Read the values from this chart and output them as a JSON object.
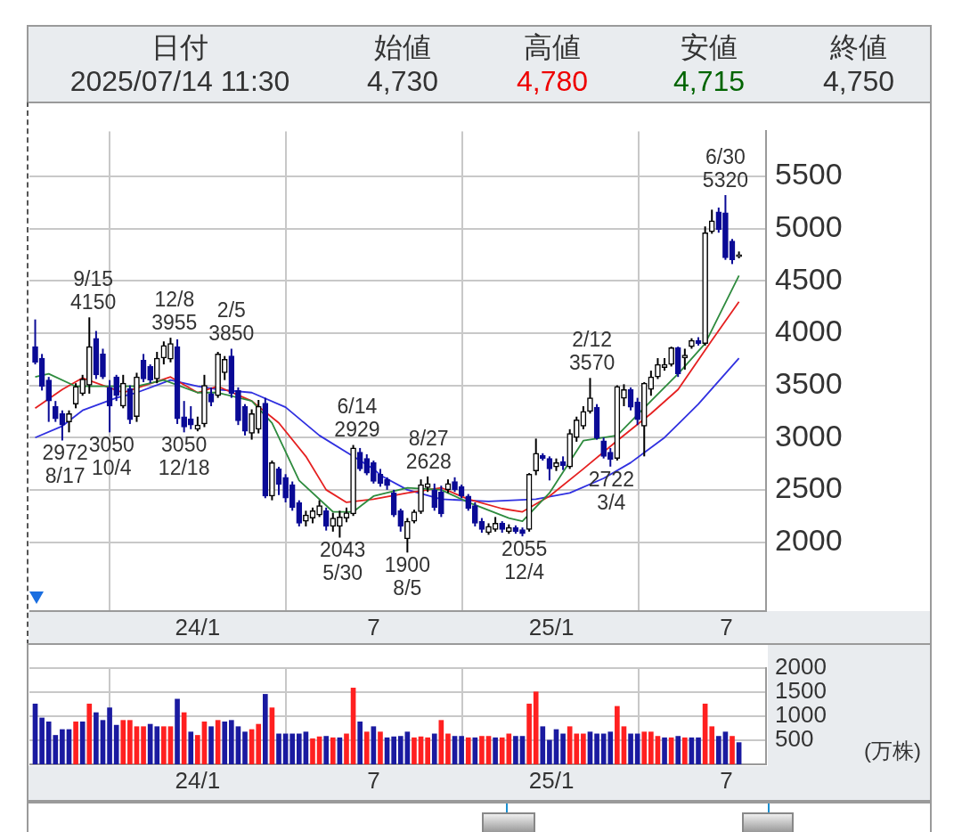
{
  "chart_data": [
    {
      "type": "other",
      "annotations": [
        "日付",
        "2025/07/14 11:30",
        "始値",
        "4,730",
        "高値",
        "4,780",
        "安値",
        "4,715",
        "終値",
        "4,750"
      ],
      "colors": [
        null,
        null,
        null,
        null,
        null,
        "#ee0000",
        null,
        "#006400",
        null,
        null
      ]
    },
    {
      "type": "candlestick",
      "x": [
        "2023-07-17",
        "2023-07-24",
        "2023-07-31",
        "2023-08-07",
        "2023-08-14",
        "2023-08-21",
        "2023-08-28",
        "2023-09-04",
        "2023-09-11",
        "2023-09-18",
        "2023-09-25",
        "2023-10-02",
        "2023-10-09",
        "2023-10-16",
        "2023-10-23",
        "2023-10-30",
        "2023-11-06",
        "2023-11-13",
        "2023-11-20",
        "2023-11-27",
        "2023-12-04",
        "2023-12-11",
        "2023-12-18",
        "2023-12-25",
        "2024-01-01",
        "2024-01-08",
        "2024-01-15",
        "2024-01-22",
        "2024-01-29",
        "2024-02-05",
        "2024-02-12",
        "2024-02-19",
        "2024-02-26",
        "2024-03-04",
        "2024-03-11",
        "2024-03-18",
        "2024-03-25",
        "2024-04-01",
        "2024-04-08",
        "2024-04-15",
        "2024-04-22",
        "2024-04-29",
        "2024-05-06",
        "2024-05-13",
        "2024-05-20",
        "2024-05-27",
        "2024-06-03",
        "2024-06-10",
        "2024-06-17",
        "2024-06-24",
        "2024-07-01",
        "2024-07-08",
        "2024-07-15",
        "2024-07-22",
        "2024-07-29",
        "2024-08-05",
        "2024-08-12",
        "2024-08-19",
        "2024-08-26",
        "2024-09-02",
        "2024-09-09",
        "2024-09-16",
        "2024-09-23",
        "2024-09-30",
        "2024-10-07",
        "2024-10-14",
        "2024-10-21",
        "2024-10-28",
        "2024-11-04",
        "2024-11-11",
        "2024-11-18",
        "2024-11-25",
        "2024-12-02",
        "2024-12-09",
        "2024-12-16",
        "2024-12-23",
        "2024-12-30",
        "2025-01-06",
        "2025-01-13",
        "2025-01-20",
        "2025-01-27",
        "2025-02-03",
        "2025-02-10",
        "2025-02-17",
        "2025-02-24",
        "2025-03-03",
        "2025-03-10",
        "2025-03-17",
        "2025-03-24",
        "2025-03-31",
        "2025-04-07",
        "2025-04-14",
        "2025-04-21",
        "2025-04-28",
        "2025-05-05",
        "2025-05-12",
        "2025-05-19",
        "2025-05-26",
        "2025-06-02",
        "2025-06-09",
        "2025-06-16",
        "2025-06-23",
        "2025-06-30",
        "2025-07-07",
        "2025-07-14"
      ],
      "ohlc": [
        [
          3870,
          4130,
          3700,
          3720
        ],
        [
          3760,
          3800,
          3450,
          3490
        ],
        [
          3550,
          3580,
          3150,
          3350
        ],
        [
          3300,
          3350,
          3150,
          3180
        ],
        [
          3230,
          3260,
          2972,
          3120
        ],
        [
          3150,
          3260,
          3050,
          3230
        ],
        [
          3320,
          3520,
          3280,
          3490
        ],
        [
          3420,
          3600,
          3400,
          3560
        ],
        [
          3500,
          4150,
          3420,
          3870
        ],
        [
          3950,
          4020,
          3560,
          3600
        ],
        [
          3800,
          3850,
          3560,
          3580
        ],
        [
          3480,
          3550,
          3050,
          3300
        ],
        [
          3580,
          3600,
          3350,
          3400
        ],
        [
          3300,
          3600,
          3280,
          3520
        ],
        [
          3470,
          3500,
          3130,
          3170
        ],
        [
          3200,
          3620,
          3150,
          3580
        ],
        [
          3740,
          3800,
          3530,
          3560
        ],
        [
          3680,
          3700,
          3520,
          3550
        ],
        [
          3560,
          3820,
          3520,
          3760
        ],
        [
          3760,
          3920,
          3700,
          3880
        ],
        [
          3750,
          3955,
          3720,
          3900
        ],
        [
          3870,
          3940,
          3130,
          3180
        ],
        [
          3200,
          3350,
          3050,
          3100
        ],
        [
          3180,
          3300,
          3080,
          3120
        ],
        [
          3080,
          3200,
          3060,
          3120
        ],
        [
          3130,
          3600,
          3100,
          3500
        ],
        [
          3420,
          3480,
          3300,
          3340
        ],
        [
          3400,
          3820,
          3380,
          3800
        ],
        [
          3620,
          3780,
          3550,
          3750
        ],
        [
          3780,
          3850,
          3380,
          3420
        ],
        [
          3450,
          3480,
          3120,
          3160
        ],
        [
          3300,
          3320,
          3020,
          3060
        ],
        [
          3040,
          3270,
          2980,
          3230
        ],
        [
          3080,
          3360,
          3040,
          3300
        ],
        [
          3330,
          3380,
          2420,
          2440
        ],
        [
          2440,
          2780,
          2400,
          2760
        ],
        [
          2700,
          2720,
          2450,
          2550
        ],
        [
          2620,
          2650,
          2380,
          2420
        ],
        [
          2550,
          2580,
          2300,
          2330
        ],
        [
          2380,
          2400,
          2150,
          2180
        ],
        [
          2200,
          2300,
          2150,
          2260
        ],
        [
          2230,
          2330,
          2180,
          2300
        ],
        [
          2260,
          2400,
          2240,
          2350
        ],
        [
          2300,
          2330,
          2110,
          2150
        ],
        [
          2150,
          2280,
          2100,
          2230
        ],
        [
          2150,
          2300,
          2043,
          2240
        ],
        [
          2230,
          2330,
          2190,
          2280
        ],
        [
          2270,
          2929,
          2250,
          2900
        ],
        [
          2860,
          2900,
          2680,
          2700
        ],
        [
          2800,
          2840,
          2640,
          2660
        ],
        [
          2760,
          2780,
          2560,
          2580
        ],
        [
          2650,
          2700,
          2530,
          2560
        ],
        [
          2600,
          2620,
          2500,
          2540
        ],
        [
          2470,
          2500,
          2240,
          2260
        ],
        [
          2300,
          2320,
          2100,
          2150
        ],
        [
          2030,
          2230,
          1900,
          2200
        ],
        [
          2200,
          2310,
          2180,
          2290
        ],
        [
          2290,
          2600,
          2270,
          2550
        ],
        [
          2520,
          2628,
          2480,
          2560
        ],
        [
          2500,
          2560,
          2300,
          2330
        ],
        [
          2480,
          2540,
          2240,
          2270
        ],
        [
          2500,
          2600,
          2470,
          2560
        ],
        [
          2580,
          2620,
          2480,
          2500
        ],
        [
          2530,
          2550,
          2420,
          2440
        ],
        [
          2440,
          2460,
          2300,
          2320
        ],
        [
          2350,
          2380,
          2150,
          2180
        ],
        [
          2200,
          2230,
          2090,
          2120
        ],
        [
          2090,
          2180,
          2070,
          2150
        ],
        [
          2120,
          2240,
          2100,
          2180
        ],
        [
          2180,
          2200,
          2090,
          2120
        ],
        [
          2100,
          2170,
          2080,
          2140
        ],
        [
          2140,
          2160,
          2080,
          2100
        ],
        [
          2120,
          2140,
          2055,
          2080
        ],
        [
          2120,
          2660,
          2100,
          2650
        ],
        [
          2680,
          2990,
          2640,
          2850
        ],
        [
          2830,
          2850,
          2780,
          2800
        ],
        [
          2800,
          2820,
          2590,
          2700
        ],
        [
          2720,
          2800,
          2680,
          2760
        ],
        [
          2770,
          2820,
          2690,
          2730
        ],
        [
          2720,
          3080,
          2700,
          3040
        ],
        [
          3000,
          3200,
          2960,
          3170
        ],
        [
          3110,
          3300,
          3080,
          3250
        ],
        [
          3250,
          3570,
          3230,
          3380
        ],
        [
          3290,
          3320,
          2980,
          2995
        ],
        [
          2970,
          3000,
          2800,
          2820
        ],
        [
          2860,
          2900,
          2722,
          2790
        ],
        [
          2800,
          3500,
          2780,
          3490
        ],
        [
          3375,
          3510,
          3300,
          3460
        ],
        [
          3460,
          3480,
          3260,
          3290
        ],
        [
          3340,
          3380,
          3120,
          3170
        ],
        [
          3110,
          3530,
          2820,
          3520
        ],
        [
          3460,
          3640,
          3400,
          3580
        ],
        [
          3580,
          3760,
          3560,
          3700
        ],
        [
          3670,
          3760,
          3640,
          3700
        ],
        [
          3700,
          3870,
          3680,
          3860
        ],
        [
          3860,
          3870,
          3580,
          3610
        ],
        [
          3760,
          3850,
          3650,
          3790
        ],
        [
          3870,
          3950,
          3850,
          3930
        ],
        [
          3930,
          3960,
          3880,
          3900
        ],
        [
          3900,
          5020,
          3880,
          4960
        ],
        [
          4970,
          5180,
          4950,
          5075
        ],
        [
          5160,
          5200,
          4960,
          4990
        ],
        [
          5150,
          5320,
          4700,
          4720
        ],
        [
          4880,
          4900,
          4660,
          4700
        ],
        [
          4730,
          4780,
          4715,
          4750
        ]
      ],
      "colors": [
        "#0a0a96",
        "#0a0a96",
        "#0a0a96",
        "#0a0a96",
        "#0a0a96",
        "#000000",
        "#000000",
        "#000000",
        "#000000",
        "#0a0a96",
        "#0a0a96",
        "#0a0a96",
        "#0a0a96",
        "#000000",
        "#0a0a96",
        "#000000",
        "#0a0a96",
        "#0a0a96",
        "#000000",
        "#000000",
        "#000000",
        "#0a0a96",
        "#0a0a96",
        "#0a0a96",
        "#000000",
        "#000000",
        "#0a0a96",
        "#000000",
        "#000000",
        "#0a0a96",
        "#0a0a96",
        "#0a0a96",
        "#000000",
        "#000000",
        "#0a0a96",
        "#000000",
        "#0a0a96",
        "#0a0a96",
        "#0a0a96",
        "#0a0a96",
        "#000000",
        "#000000",
        "#000000",
        "#0a0a96",
        "#000000",
        "#000000",
        "#000000",
        "#000000",
        "#0a0a96",
        "#0a0a96",
        "#0a0a96",
        "#0a0a96",
        "#0a0a96",
        "#0a0a96",
        "#0a0a96",
        "#000000",
        "#000000",
        "#000000",
        "#000000",
        "#0a0a96",
        "#0a0a96",
        "#000000",
        "#0a0a96",
        "#0a0a96",
        "#0a0a96",
        "#0a0a96",
        "#0a0a96",
        "#000000",
        "#000000",
        "#0a0a96",
        "#000000",
        "#0a0a96",
        "#0a0a96",
        "#000000",
        "#000000",
        "#0a0a96",
        "#0a0a96",
        "#000000",
        "#0a0a96",
        "#000000",
        "#000000",
        "#000000",
        "#000000",
        "#0a0a96",
        "#0a0a96",
        "#0a0a96",
        "#000000",
        "#000000",
        "#0a0a96",
        "#0a0a96",
        "#000000",
        "#000000",
        "#000000",
        "#000000",
        "#000000",
        "#0a0a96",
        "#000000",
        "#000000",
        "#0a0a96",
        "#000000",
        "#000000",
        "#0a0a96",
        "#0a0a96",
        "#0a0a96",
        "#000000"
      ],
      "series": [
        {
          "type": "line",
          "color": "#2e8b3e",
          "x": [
            "2023-07-17",
            "2023-07-31",
            "2023-08-28",
            "2023-10-02",
            "2023-10-30",
            "2023-11-27",
            "2024-01-01",
            "2024-01-22",
            "2024-02-26",
            "2024-03-18",
            "2024-04-15",
            "2024-05-20",
            "2024-06-10",
            "2024-07-01",
            "2024-08-05",
            "2024-09-09",
            "2024-10-07",
            "2024-11-18",
            "2024-12-02",
            "2024-12-30",
            "2025-02-03",
            "2025-03-10",
            "2025-04-14",
            "2025-05-12",
            "2025-06-09",
            "2025-07-14"
          ],
          "values": [
            3580,
            3610,
            3490,
            3490,
            3490,
            3550,
            3430,
            3430,
            3350,
            3140,
            2590,
            2290,
            2290,
            2440,
            2520,
            2500,
            2380,
            2230,
            2200,
            2470,
            2970,
            3020,
            3350,
            3610,
            3900,
            4550
          ]
        },
        {
          "type": "line",
          "color": "#e52020",
          "x": [
            "2023-07-17",
            "2023-08-14",
            "2023-09-04",
            "2023-10-16",
            "2023-12-04",
            "2024-01-01",
            "2024-01-22",
            "2024-02-26",
            "2024-03-25",
            "2024-04-22",
            "2024-05-13",
            "2024-06-03",
            "2024-07-01",
            "2024-08-05",
            "2024-09-09",
            "2024-10-07",
            "2024-11-11",
            "2024-12-02",
            "2024-12-30",
            "2025-02-03",
            "2025-03-10",
            "2025-04-14",
            "2025-05-12",
            "2025-06-16",
            "2025-07-14"
          ],
          "values": [
            3280,
            3460,
            3570,
            3430,
            3580,
            3430,
            3490,
            3350,
            3140,
            2820,
            2500,
            2380,
            2410,
            2470,
            2520,
            2410,
            2320,
            2290,
            2440,
            2700,
            2970,
            3230,
            3460,
            3930,
            4300
          ]
        },
        {
          "type": "line",
          "color": "#3030e0",
          "x": [
            "2023-07-17",
            "2023-08-14",
            "2023-09-04",
            "2023-10-09",
            "2023-10-30",
            "2023-12-04",
            "2024-01-01",
            "2024-01-22",
            "2024-02-26",
            "2024-04-01",
            "2024-05-06",
            "2024-06-10",
            "2024-07-01",
            "2024-07-08",
            "2024-08-05",
            "2024-09-09",
            "2024-10-28",
            "2024-12-16",
            "2025-01-20",
            "2025-02-24",
            "2025-03-24",
            "2025-04-28",
            "2025-06-02",
            "2025-07-14"
          ],
          "values": [
            3000,
            3110,
            3260,
            3380,
            3430,
            3550,
            3490,
            3460,
            3430,
            3290,
            3020,
            2820,
            2700,
            2640,
            2500,
            2410,
            2390,
            2410,
            2470,
            2610,
            2760,
            3000,
            3320,
            3760
          ]
        }
      ],
      "xlim": [
        "2023-07-11",
        "2025-08-11"
      ],
      "xticks": [
        {
          "value": "2024-01-01",
          "label": "24/1"
        },
        {
          "value": "2024-07-01",
          "label": "7"
        },
        {
          "value": "2025-01-01",
          "label": "25/1"
        },
        {
          "value": "2025-07-01",
          "label": "7"
        }
      ],
      "ylim": [
        1340,
        5930
      ],
      "yticks": [
        2000,
        2500,
        3000,
        3500,
        4000,
        4500,
        5000,
        5500
      ],
      "grid": true,
      "annotations": [
        {
          "text": "9/15\n4150",
          "x": "2023-09-15",
          "y": 4150
        },
        {
          "text": "12/8\n3955",
          "x": "2023-12-08",
          "y": 3955
        },
        {
          "text": "2/5\n3850",
          "x": "2024-02-05",
          "y": 3850
        },
        {
          "text": "6/14\n2929",
          "x": "2024-06-14",
          "y": 2929
        },
        {
          "text": "8/27\n2628",
          "x": "2024-08-27",
          "y": 2628
        },
        {
          "text": "2/12\n3570",
          "x": "2025-02-12",
          "y": 3570
        },
        {
          "text": "6/30\n5320",
          "x": "2025-06-30",
          "y": 5320
        },
        {
          "text": "2972\n8/17",
          "x": "2023-08-17",
          "y": 2972
        },
        {
          "text": "3050\n10/4",
          "x": "2023-10-04",
          "y": 3050
        },
        {
          "text": "3050\n12/18",
          "x": "2023-12-18",
          "y": 3050
        },
        {
          "text": "2043\n5/30",
          "x": "2024-05-30",
          "y": 2043
        },
        {
          "text": "1900\n8/5",
          "x": "2024-08-05",
          "y": 1900
        },
        {
          "text": "2055\n12/4",
          "x": "2024-12-04",
          "y": 2055
        },
        {
          "text": "2722\n3/4",
          "x": "2025-03-04",
          "y": 2722
        }
      ]
    },
    {
      "type": "bar",
      "ylabel": "(万株)",
      "x": [
        "2023-07-17",
        "2023-07-24",
        "2023-07-31",
        "2023-08-07",
        "2023-08-14",
        "2023-08-21",
        "2023-08-28",
        "2023-09-04",
        "2023-09-11",
        "2023-09-18",
        "2023-09-25",
        "2023-10-02",
        "2023-10-09",
        "2023-10-16",
        "2023-10-23",
        "2023-10-30",
        "2023-11-06",
        "2023-11-13",
        "2023-11-20",
        "2023-11-27",
        "2023-12-04",
        "2023-12-11",
        "2023-12-18",
        "2023-12-25",
        "2024-01-01",
        "2024-01-08",
        "2024-01-15",
        "2024-01-22",
        "2024-01-29",
        "2024-02-05",
        "2024-02-12",
        "2024-02-19",
        "2024-02-26",
        "2024-03-04",
        "2024-03-11",
        "2024-03-18",
        "2024-03-25",
        "2024-04-01",
        "2024-04-08",
        "2024-04-15",
        "2024-04-22",
        "2024-04-29",
        "2024-05-06",
        "2024-05-13",
        "2024-05-20",
        "2024-05-27",
        "2024-06-03",
        "2024-06-10",
        "2024-06-17",
        "2024-06-24",
        "2024-07-01",
        "2024-07-08",
        "2024-07-15",
        "2024-07-22",
        "2024-07-29",
        "2024-08-05",
        "2024-08-12",
        "2024-08-19",
        "2024-08-26",
        "2024-09-02",
        "2024-09-09",
        "2024-09-16",
        "2024-09-23",
        "2024-09-30",
        "2024-10-07",
        "2024-10-14",
        "2024-10-21",
        "2024-10-28",
        "2024-11-04",
        "2024-11-11",
        "2024-11-18",
        "2024-11-25",
        "2024-12-02",
        "2024-12-09",
        "2024-12-16",
        "2024-12-23",
        "2024-12-30",
        "2025-01-06",
        "2025-01-13",
        "2025-01-20",
        "2025-01-27",
        "2025-02-03",
        "2025-02-10",
        "2025-02-17",
        "2025-02-24",
        "2025-03-03",
        "2025-03-10",
        "2025-03-17",
        "2025-03-24",
        "2025-03-31",
        "2025-04-07",
        "2025-04-14",
        "2025-04-21",
        "2025-04-28",
        "2025-05-05",
        "2025-05-12",
        "2025-05-19",
        "2025-05-26",
        "2025-06-02",
        "2025-06-09",
        "2025-06-16",
        "2025-06-23",
        "2025-06-30",
        "2025-07-07",
        "2025-07-14"
      ],
      "values": [
        1250,
        960,
        880,
        600,
        720,
        720,
        880,
        880,
        1250,
        1070,
        910,
        1170,
        810,
        910,
        910,
        780,
        780,
        830,
        780,
        780,
        780,
        1350,
        1070,
        670,
        600,
        880,
        780,
        910,
        880,
        910,
        780,
        670,
        720,
        830,
        1450,
        1170,
        630,
        630,
        630,
        630,
        670,
        530,
        570,
        580,
        550,
        550,
        630,
        1580,
        880,
        670,
        780,
        670,
        550,
        570,
        580,
        670,
        550,
        570,
        550,
        630,
        910,
        630,
        580,
        580,
        550,
        550,
        580,
        580,
        550,
        550,
        630,
        580,
        580,
        1250,
        1500,
        780,
        500,
        720,
        630,
        780,
        630,
        630,
        670,
        630,
        630,
        670,
        1200,
        780,
        630,
        630,
        670,
        670,
        580,
        550,
        550,
        580,
        550,
        550,
        550,
        1250,
        780,
        580,
        670,
        580,
        450
      ],
      "colors": [
        "#1a1aa0",
        "#1a1aa0",
        "#1a1aa0",
        "#1a1aa0",
        "#1a1aa0",
        "#1a1aa0",
        "#ff2020",
        "#1a1aa0",
        "#ff2020",
        "#1a1aa0",
        "#1a1aa0",
        "#1a1aa0",
        "#1a1aa0",
        "#ff2020",
        "#ff2020",
        "#ff2020",
        "#ff2020",
        "#1a1aa0",
        "#1a1aa0",
        "#ff2020",
        "#ff2020",
        "#1a1aa0",
        "#ff2020",
        "#1a1aa0",
        "#ff2020",
        "#ff2020",
        "#1a1aa0",
        "#ff2020",
        "#1a1aa0",
        "#1a1aa0",
        "#1a1aa0",
        "#1a1aa0",
        "#ff2020",
        "#ff2020",
        "#1a1aa0",
        "#ff2020",
        "#1a1aa0",
        "#1a1aa0",
        "#1a1aa0",
        "#1a1aa0",
        "#1a1aa0",
        "#ff2020",
        "#ff2020",
        "#1a1aa0",
        "#ff2020",
        "#1a1aa0",
        "#ff2020",
        "#ff2020",
        "#1a1aa0",
        "#ff2020",
        "#1a1aa0",
        "#ff2020",
        "#1a1aa0",
        "#1a1aa0",
        "#1a1aa0",
        "#1a1aa0",
        "#ff2020",
        "#ff2020",
        "#ff2020",
        "#1a1aa0",
        "#ff2020",
        "#ff2020",
        "#1a1aa0",
        "#1a1aa0",
        "#ff2020",
        "#1a1aa0",
        "#ff2020",
        "#ff2020",
        "#1a1aa0",
        "#ff2020",
        "#ff2020",
        "#1a1aa0",
        "#1a1aa0",
        "#ff2020",
        "#ff2020",
        "#1a1aa0",
        "#1a1aa0",
        "#1a1aa0",
        "#1a1aa0",
        "#ff2020",
        "#ff2020",
        "#ff2020",
        "#1a1aa0",
        "#1a1aa0",
        "#1a1aa0",
        "#1a1aa0",
        "#ff2020",
        "#ff2020",
        "#1a1aa0",
        "#1a1aa0",
        "#ff2020",
        "#ff2020",
        "#ff2020",
        "#1a1aa0",
        "#ff2020",
        "#1a1aa0",
        "#ff2020",
        "#1a1aa0",
        "#1a1aa0",
        "#ff2020",
        "#ff2020",
        "#1a1aa0",
        "#1a1aa0",
        "#ff2020",
        "#1a1aa0"
      ],
      "xlim": [
        "2023-07-11",
        "2025-08-11"
      ],
      "xticks": [
        {
          "value": "2024-01-01",
          "label": "24/1"
        },
        {
          "value": "2024-07-01",
          "label": "7"
        },
        {
          "value": "2025-01-01",
          "label": "25/1"
        },
        {
          "value": "2025-07-01",
          "label": "7"
        }
      ],
      "ylim": [
        0,
        2000
      ],
      "yticks": [
        500,
        1000,
        1500,
        2000
      ],
      "grid": true
    }
  ]
}
